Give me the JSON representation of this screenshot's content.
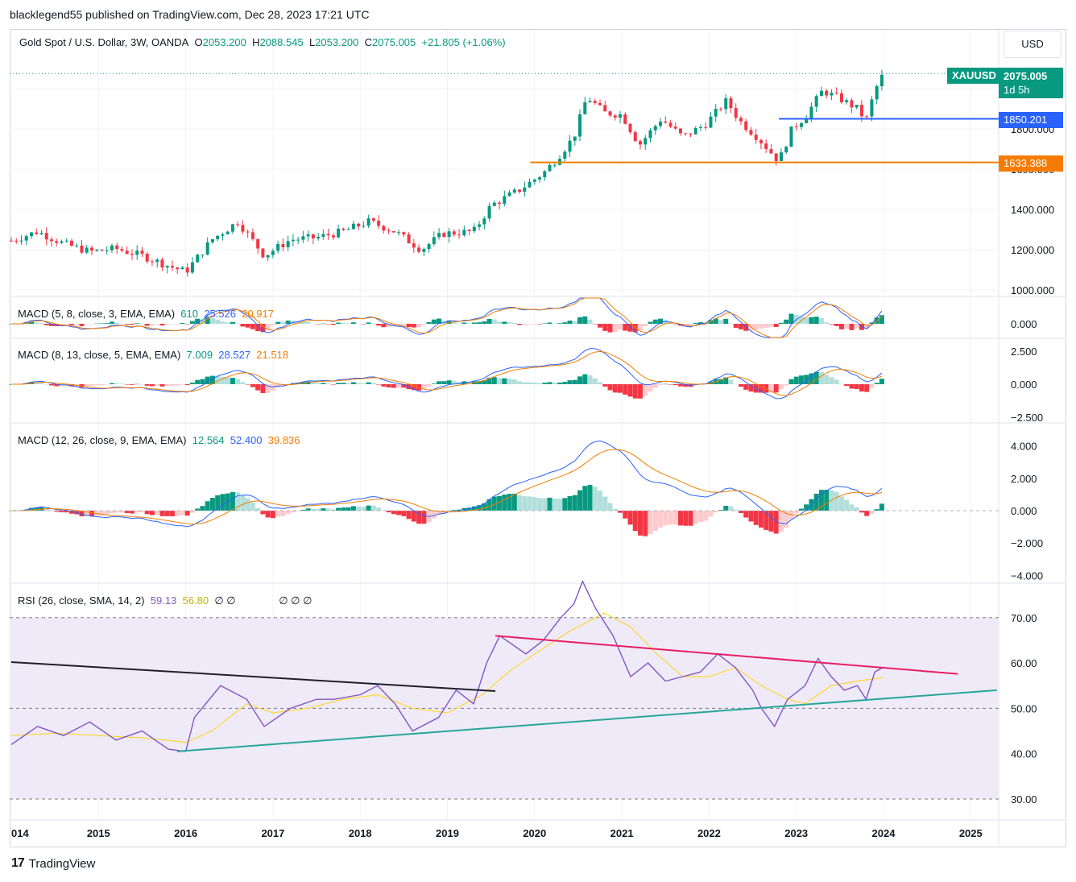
{
  "publisher": "blacklegend55 published on TradingView.com, Dec 28, 2023 17:21 UTC",
  "symbol": {
    "title": "Gold Spot / U.S. Dollar, 3W, OANDA",
    "o_label": "O",
    "o": "2053.200",
    "h_label": "H",
    "h": "2088.545",
    "l_label": "L",
    "l": "2053.200",
    "c_label": "C",
    "c": "2075.005",
    "change": "+21.805 (+1.06%)"
  },
  "currency": "USD",
  "price_tags": {
    "ticker": "XAUUSD",
    "last": "2075.005",
    "countdown": "1d 5h",
    "support_blue": "1850.201",
    "support_orange": "1633.388"
  },
  "colors": {
    "up": "#089981",
    "down": "#f23645",
    "up_light": "#b2dfdb",
    "down_light": "#fccbcd",
    "blue_line": "#2962ff",
    "orange_line": "#f57c00",
    "rsi_line": "#7e57c2",
    "rsi_ma": "#fdd835",
    "rsi_band": "#efeaf8",
    "red_trend": "#e91e63",
    "green_trend": "#26a69a",
    "black_trend": "#1e1e2e"
  },
  "panes": {
    "macd1": {
      "label": "MACD (5, 8, close, 3, EMA, EMA)",
      "v1": "610",
      "v2": "25.526",
      "v3": "20.917"
    },
    "macd2": {
      "label": "MACD (8, 13, close, 5, EMA, EMA)",
      "v1": "7.009",
      "v2": "28.527",
      "v3": "21.518"
    },
    "macd3": {
      "label": "MACD (12, 26, close, 9, EMA, EMA)",
      "v1": "12.564",
      "v2": "52.400",
      "v3": "39.836"
    },
    "rsi": {
      "label": "RSI (26, close, SMA, 14, 2)",
      "v1": "59.13",
      "v2": "56.80",
      "extra1": "∅ ∅",
      "extra2": "∅ ∅ ∅"
    }
  },
  "branding": {
    "name": "TradingView",
    "logo_text": "17"
  },
  "chart_data": {
    "type": "candlestick",
    "x_ticks": [
      "014",
      "2015",
      "2016",
      "2017",
      "2018",
      "2019",
      "2020",
      "2021",
      "2022",
      "2023",
      "2024",
      "2025"
    ],
    "price_axis": [
      "1000.000",
      "1200.000",
      "1400.000",
      "1600.000",
      "1800.000"
    ],
    "macd1_axis": [
      "0.000"
    ],
    "macd2_axis": [
      "2.500",
      "0.000",
      "−2.500"
    ],
    "macd3_axis": [
      "4.000",
      "2.000",
      "0.000",
      "−2.000",
      "−4.000"
    ],
    "rsi_axis": [
      "70.00",
      "60.00",
      "50.00",
      "40.00",
      "30.00"
    ],
    "price_path": [
      [
        2014.0,
        1245
      ],
      [
        2014.3,
        1290
      ],
      [
        2014.6,
        1230
      ],
      [
        2014.9,
        1190
      ],
      [
        2015.2,
        1205
      ],
      [
        2015.5,
        1170
      ],
      [
        2015.8,
        1120
      ],
      [
        2016.0,
        1090
      ],
      [
        2016.3,
        1250
      ],
      [
        2016.6,
        1340
      ],
      [
        2016.9,
        1170
      ],
      [
        2017.2,
        1250
      ],
      [
        2017.5,
        1260
      ],
      [
        2017.8,
        1290
      ],
      [
        2018.1,
        1340
      ],
      [
        2018.4,
        1290
      ],
      [
        2018.7,
        1200
      ],
      [
        2018.95,
        1280
      ],
      [
        2019.3,
        1290
      ],
      [
        2019.5,
        1420
      ],
      [
        2019.8,
        1490
      ],
      [
        2020.1,
        1580
      ],
      [
        2020.25,
        1650
      ],
      [
        2020.45,
        1760
      ],
      [
        2020.6,
        1960
      ],
      [
        2020.8,
        1880
      ],
      [
        2021.0,
        1870
      ],
      [
        2021.2,
        1720
      ],
      [
        2021.45,
        1850
      ],
      [
        2021.7,
        1760
      ],
      [
        2021.95,
        1820
      ],
      [
        2022.2,
        1940
      ],
      [
        2022.35,
        1840
      ],
      [
        2022.55,
        1760
      ],
      [
        2022.8,
        1640
      ],
      [
        2022.95,
        1800
      ],
      [
        2023.1,
        1860
      ],
      [
        2023.3,
        1990
      ],
      [
        2023.5,
        1950
      ],
      [
        2023.7,
        1900
      ],
      [
        2023.8,
        1840
      ],
      [
        2023.9,
        1990
      ],
      [
        2024.0,
        2075
      ]
    ],
    "horizontal_levels": [
      {
        "price": 1850.201,
        "from": 2022.8,
        "color": "blue"
      },
      {
        "price": 1633.388,
        "from": 2019.95,
        "color": "orange"
      },
      {
        "price": 2075.005,
        "from": 2014.0,
        "color": "dotted"
      }
    ],
    "rsi_path": [
      [
        2014.0,
        42
      ],
      [
        2014.3,
        46
      ],
      [
        2014.6,
        44
      ],
      [
        2014.9,
        47
      ],
      [
        2015.2,
        43
      ],
      [
        2015.5,
        45
      ],
      [
        2015.8,
        41
      ],
      [
        2016.0,
        40.5
      ],
      [
        2016.1,
        48
      ],
      [
        2016.4,
        55
      ],
      [
        2016.7,
        52
      ],
      [
        2016.9,
        46
      ],
      [
        2017.2,
        50
      ],
      [
        2017.5,
        52
      ],
      [
        2017.7,
        52
      ],
      [
        2018.0,
        53
      ],
      [
        2018.2,
        55
      ],
      [
        2018.4,
        51
      ],
      [
        2018.6,
        45
      ],
      [
        2018.9,
        48
      ],
      [
        2019.1,
        54
      ],
      [
        2019.3,
        51
      ],
      [
        2019.45,
        60
      ],
      [
        2019.6,
        66
      ],
      [
        2019.9,
        62
      ],
      [
        2020.1,
        65
      ],
      [
        2020.3,
        70
      ],
      [
        2020.45,
        73
      ],
      [
        2020.55,
        78
      ],
      [
        2020.7,
        72
      ],
      [
        2020.9,
        66
      ],
      [
        2021.1,
        57
      ],
      [
        2021.3,
        60
      ],
      [
        2021.5,
        56
      ],
      [
        2021.7,
        57
      ],
      [
        2021.9,
        58
      ],
      [
        2022.1,
        62
      ],
      [
        2022.3,
        59
      ],
      [
        2022.5,
        54
      ],
      [
        2022.6,
        50
      ],
      [
        2022.75,
        46
      ],
      [
        2022.9,
        52
      ],
      [
        2023.1,
        55
      ],
      [
        2023.25,
        61
      ],
      [
        2023.4,
        57
      ],
      [
        2023.55,
        54
      ],
      [
        2023.7,
        55
      ],
      [
        2023.8,
        52
      ],
      [
        2023.9,
        58
      ],
      [
        2024.0,
        59.1
      ]
    ],
    "rsi_ma_path": [
      [
        2014.0,
        44
      ],
      [
        2014.5,
        44.5
      ],
      [
        2015.0,
        44
      ],
      [
        2015.5,
        43.5
      ],
      [
        2016.0,
        42.5
      ],
      [
        2016.3,
        45
      ],
      [
        2016.7,
        51
      ],
      [
        2017.0,
        49
      ],
      [
        2017.4,
        50
      ],
      [
        2017.8,
        52
      ],
      [
        2018.2,
        53
      ],
      [
        2018.6,
        50
      ],
      [
        2019.0,
        49
      ],
      [
        2019.4,
        53
      ],
      [
        2019.7,
        58
      ],
      [
        2020.0,
        62
      ],
      [
        2020.4,
        67
      ],
      [
        2020.8,
        71
      ],
      [
        2021.1,
        68
      ],
      [
        2021.4,
        62
      ],
      [
        2021.7,
        57
      ],
      [
        2022.0,
        57
      ],
      [
        2022.3,
        59
      ],
      [
        2022.6,
        55
      ],
      [
        2022.9,
        52
      ],
      [
        2023.1,
        51
      ],
      [
        2023.4,
        55
      ],
      [
        2023.7,
        56
      ],
      [
        2024.0,
        56.8
      ]
    ],
    "rsi_trendlines": [
      {
        "from": [
          2014.0,
          60.2
        ],
        "to": [
          2019.55,
          53.8
        ],
        "color": "black"
      },
      {
        "from": [
          2019.55,
          66
        ],
        "to": [
          2024.85,
          57.6
        ],
        "color": "red"
      },
      {
        "from": [
          2015.9,
          40.5
        ],
        "to": [
          2025.3,
          54
        ],
        "color": "green"
      }
    ],
    "rsi_bands": {
      "upper": 70,
      "middle": 50,
      "lower": 30
    }
  }
}
